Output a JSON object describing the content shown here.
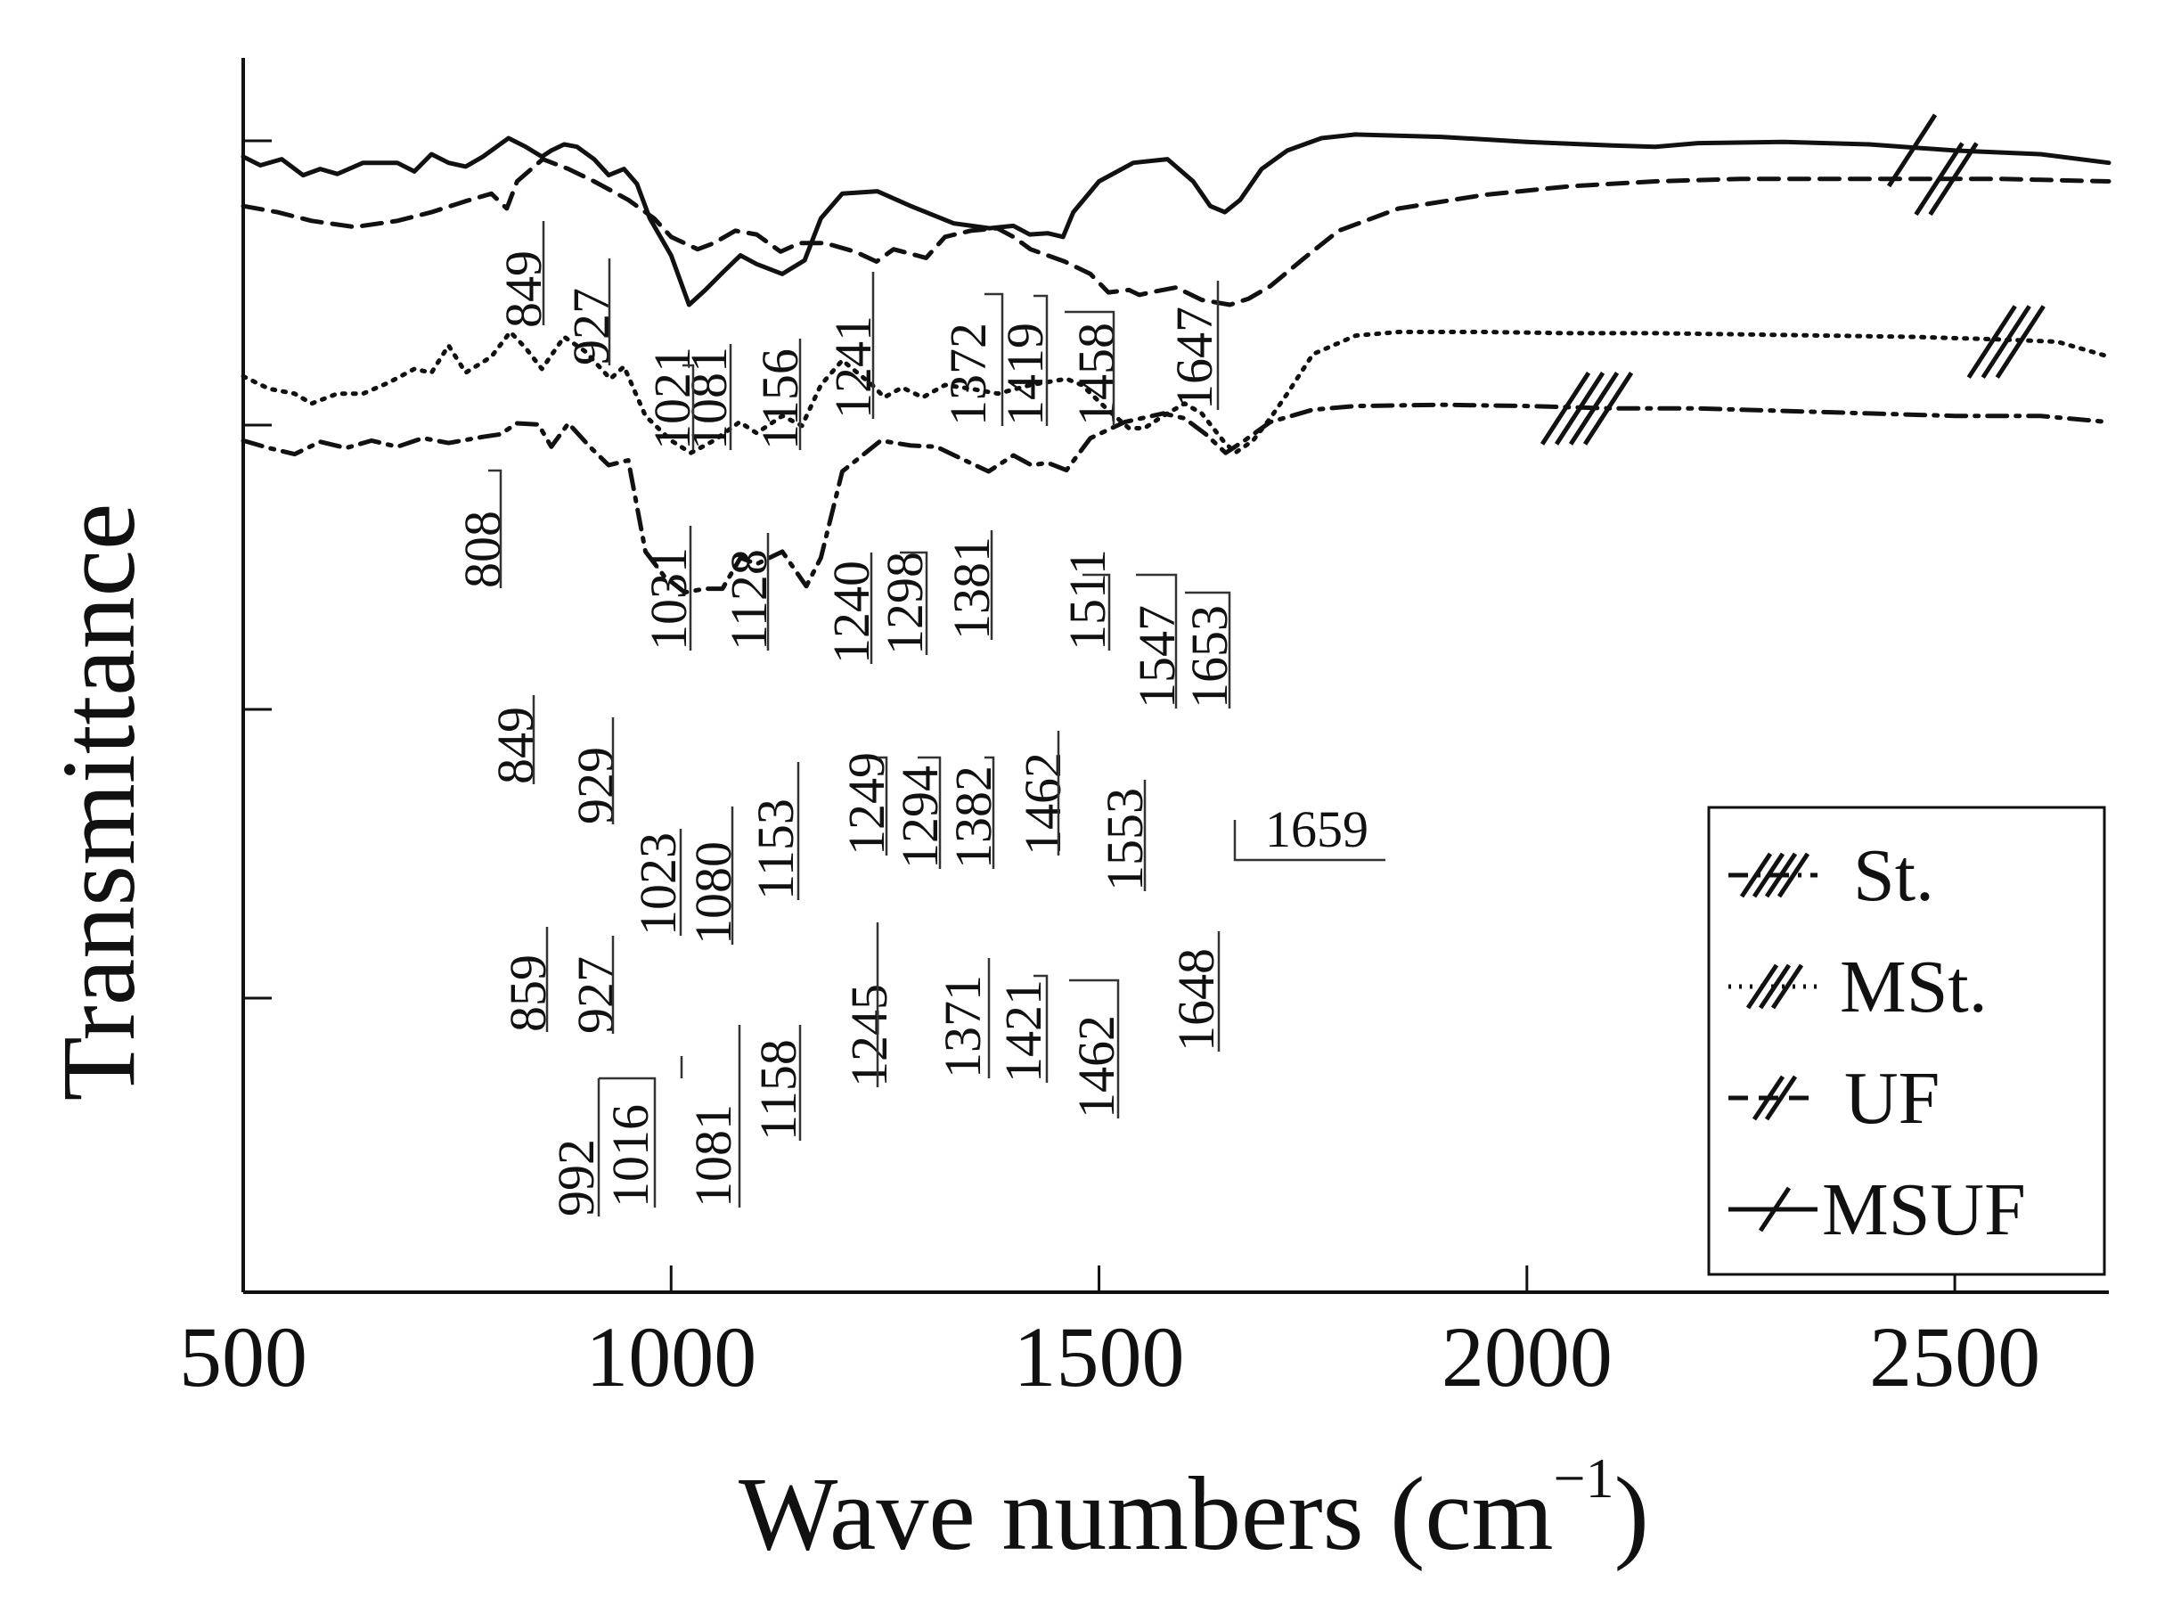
{
  "chart_data": {
    "type": "line",
    "title": "",
    "xlabel": "Wave numbers (cm",
    "xlabel_sup": "−1",
    "xlabel_close": ")",
    "ylabel": "Transmittance",
    "xlim": [
      500,
      2680
    ],
    "ylim": [
      0,
      1
    ],
    "grid": false,
    "x_ticks": [
      500,
      1000,
      1500,
      2000,
      2500
    ],
    "x_tick_labels": [
      "500",
      "1000",
      "1500",
      "2000",
      "2500"
    ],
    "legend_position": "bottom-right",
    "series": [
      {
        "name": "St.",
        "legend_marker": "////",
        "break_marks": 4,
        "break_x": 2070,
        "style": "dashdot",
        "points": [
          [
            500,
            0.69
          ],
          [
            530,
            0.684
          ],
          [
            560,
            0.679
          ],
          [
            590,
            0.689
          ],
          [
            620,
            0.684
          ],
          [
            650,
            0.69
          ],
          [
            680,
            0.685
          ],
          [
            710,
            0.692
          ],
          [
            740,
            0.688
          ],
          [
            780,
            0.693
          ],
          [
            800,
            0.695
          ],
          [
            820,
            0.704
          ],
          [
            845,
            0.703
          ],
          [
            860,
            0.685
          ],
          [
            880,
            0.704
          ],
          [
            905,
            0.685
          ],
          [
            927,
            0.67
          ],
          [
            950,
            0.674
          ],
          [
            970,
            0.6
          ],
          [
            992,
            0.58
          ],
          [
            1016,
            0.567
          ],
          [
            1040,
            0.57
          ],
          [
            1060,
            0.57
          ],
          [
            1081,
            0.595
          ],
          [
            1100,
            0.59
          ],
          [
            1130,
            0.6
          ],
          [
            1158,
            0.572
          ],
          [
            1175,
            0.595
          ],
          [
            1200,
            0.665
          ],
          [
            1245,
            0.69
          ],
          [
            1280,
            0.686
          ],
          [
            1310,
            0.685
          ],
          [
            1340,
            0.675
          ],
          [
            1371,
            0.665
          ],
          [
            1400,
            0.678
          ],
          [
            1421,
            0.67
          ],
          [
            1440,
            0.672
          ],
          [
            1462,
            0.666
          ],
          [
            1490,
            0.692
          ],
          [
            1530,
            0.705
          ],
          [
            1575,
            0.712
          ],
          [
            1600,
            0.708
          ],
          [
            1625,
            0.695
          ],
          [
            1648,
            0.68
          ],
          [
            1670,
            0.69
          ],
          [
            1700,
            0.705
          ],
          [
            1750,
            0.715
          ],
          [
            1800,
            0.718
          ],
          [
            1900,
            0.719
          ],
          [
            2000,
            0.718
          ],
          [
            2100,
            0.716
          ],
          [
            2200,
            0.716
          ],
          [
            2300,
            0.714
          ],
          [
            2400,
            0.712
          ],
          [
            2500,
            0.71
          ],
          [
            2600,
            0.71
          ],
          [
            2680,
            0.705
          ]
        ],
        "peaks": [
          "859",
          "927",
          "992",
          "1016",
          "1081",
          "1158",
          "1245",
          "1371",
          "1421",
          "1462",
          "1648"
        ]
      },
      {
        "name": "MSt.",
        "legend_marker": "///",
        "break_marks": 3,
        "break_x": 2560,
        "style": "dotted",
        "points": [
          [
            500,
            0.742
          ],
          [
            530,
            0.732
          ],
          [
            560,
            0.728
          ],
          [
            580,
            0.72
          ],
          [
            610,
            0.728
          ],
          [
            640,
            0.728
          ],
          [
            670,
            0.737
          ],
          [
            700,
            0.748
          ],
          [
            720,
            0.745
          ],
          [
            740,
            0.767
          ],
          [
            760,
            0.745
          ],
          [
            790,
            0.758
          ],
          [
            812,
            0.778
          ],
          [
            830,
            0.765
          ],
          [
            849,
            0.748
          ],
          [
            875,
            0.774
          ],
          [
            900,
            0.762
          ],
          [
            929,
            0.74
          ],
          [
            945,
            0.75
          ],
          [
            970,
            0.71
          ],
          [
            1000,
            0.69
          ],
          [
            1023,
            0.68
          ],
          [
            1050,
            0.69
          ],
          [
            1080,
            0.705
          ],
          [
            1100,
            0.696
          ],
          [
            1130,
            0.71
          ],
          [
            1153,
            0.702
          ],
          [
            1175,
            0.735
          ],
          [
            1200,
            0.755
          ],
          [
            1235,
            0.735
          ],
          [
            1249,
            0.725
          ],
          [
            1270,
            0.733
          ],
          [
            1294,
            0.725
          ],
          [
            1320,
            0.735
          ],
          [
            1350,
            0.732
          ],
          [
            1382,
            0.728
          ],
          [
            1420,
            0.735
          ],
          [
            1462,
            0.74
          ],
          [
            1480,
            0.735
          ],
          [
            1510,
            0.715
          ],
          [
            1535,
            0.7
          ],
          [
            1553,
            0.7
          ],
          [
            1575,
            0.71
          ],
          [
            1600,
            0.72
          ],
          [
            1620,
            0.712
          ],
          [
            1645,
            0.69
          ],
          [
            1659,
            0.68
          ],
          [
            1680,
            0.69
          ],
          [
            1700,
            0.708
          ],
          [
            1720,
            0.728
          ],
          [
            1750,
            0.76
          ],
          [
            1800,
            0.775
          ],
          [
            1850,
            0.778
          ],
          [
            1950,
            0.778
          ],
          [
            2050,
            0.777
          ],
          [
            2150,
            0.777
          ],
          [
            2250,
            0.776
          ],
          [
            2350,
            0.775
          ],
          [
            2450,
            0.774
          ],
          [
            2550,
            0.772
          ],
          [
            2620,
            0.77
          ],
          [
            2680,
            0.758
          ]
        ],
        "peaks": [
          "849",
          "929",
          "1023",
          "1080",
          "1153",
          "1249",
          "1294",
          "1382",
          "1462",
          "1553",
          "1659"
        ]
      },
      {
        "name": "UF",
        "legend_marker": "//",
        "break_marks": 2,
        "break_x": 2490,
        "style": "dashed",
        "points": [
          [
            500,
            0.88
          ],
          [
            540,
            0.875
          ],
          [
            580,
            0.868
          ],
          [
            630,
            0.863
          ],
          [
            680,
            0.868
          ],
          [
            720,
            0.875
          ],
          [
            760,
            0.884
          ],
          [
            790,
            0.89
          ],
          [
            808,
            0.878
          ],
          [
            820,
            0.9
          ],
          [
            850,
            0.918
          ],
          [
            880,
            0.91
          ],
          [
            910,
            0.9
          ],
          [
            950,
            0.885
          ],
          [
            980,
            0.87
          ],
          [
            1000,
            0.855
          ],
          [
            1031,
            0.845
          ],
          [
            1050,
            0.85
          ],
          [
            1075,
            0.86
          ],
          [
            1100,
            0.857
          ],
          [
            1128,
            0.843
          ],
          [
            1150,
            0.85
          ],
          [
            1180,
            0.85
          ],
          [
            1215,
            0.843
          ],
          [
            1240,
            0.835
          ],
          [
            1260,
            0.845
          ],
          [
            1298,
            0.838
          ],
          [
            1320,
            0.855
          ],
          [
            1350,
            0.86
          ],
          [
            1381,
            0.862
          ],
          [
            1400,
            0.855
          ],
          [
            1420,
            0.845
          ],
          [
            1460,
            0.835
          ],
          [
            1490,
            0.825
          ],
          [
            1511,
            0.81
          ],
          [
            1535,
            0.812
          ],
          [
            1547,
            0.808
          ],
          [
            1560,
            0.81
          ],
          [
            1590,
            0.814
          ],
          [
            1620,
            0.804
          ],
          [
            1653,
            0.8
          ],
          [
            1675,
            0.805
          ],
          [
            1700,
            0.815
          ],
          [
            1740,
            0.838
          ],
          [
            1780,
            0.86
          ],
          [
            1850,
            0.878
          ],
          [
            1950,
            0.889
          ],
          [
            2050,
            0.896
          ],
          [
            2150,
            0.9
          ],
          [
            2250,
            0.902
          ],
          [
            2350,
            0.902
          ],
          [
            2450,
            0.902
          ],
          [
            2550,
            0.902
          ],
          [
            2680,
            0.9
          ]
        ],
        "peaks": [
          "808",
          "1031",
          "1128",
          "1240",
          "1298",
          "1381",
          "1511",
          "1547",
          "1653"
        ]
      },
      {
        "name": "MSUF",
        "legend_marker": "/",
        "break_marks": 1,
        "break_x": 2450,
        "style": "solid",
        "points": [
          [
            500,
            0.92
          ],
          [
            520,
            0.913
          ],
          [
            545,
            0.918
          ],
          [
            570,
            0.905
          ],
          [
            590,
            0.91
          ],
          [
            610,
            0.906
          ],
          [
            640,
            0.915
          ],
          [
            680,
            0.915
          ],
          [
            700,
            0.908
          ],
          [
            720,
            0.922
          ],
          [
            740,
            0.915
          ],
          [
            760,
            0.912
          ],
          [
            780,
            0.92
          ],
          [
            810,
            0.935
          ],
          [
            830,
            0.928
          ],
          [
            849,
            0.92
          ],
          [
            860,
            0.925
          ],
          [
            875,
            0.93
          ],
          [
            890,
            0.928
          ],
          [
            910,
            0.918
          ],
          [
            927,
            0.905
          ],
          [
            945,
            0.91
          ],
          [
            960,
            0.898
          ],
          [
            975,
            0.87
          ],
          [
            1000,
            0.84
          ],
          [
            1021,
            0.8
          ],
          [
            1040,
            0.812
          ],
          [
            1060,
            0.826
          ],
          [
            1081,
            0.84
          ],
          [
            1100,
            0.833
          ],
          [
            1130,
            0.825
          ],
          [
            1156,
            0.836
          ],
          [
            1175,
            0.87
          ],
          [
            1200,
            0.89
          ],
          [
            1241,
            0.892
          ],
          [
            1280,
            0.88
          ],
          [
            1330,
            0.866
          ],
          [
            1372,
            0.862
          ],
          [
            1400,
            0.864
          ],
          [
            1419,
            0.857
          ],
          [
            1440,
            0.858
          ],
          [
            1458,
            0.855
          ],
          [
            1470,
            0.875
          ],
          [
            1500,
            0.9
          ],
          [
            1540,
            0.915
          ],
          [
            1580,
            0.918
          ],
          [
            1610,
            0.9
          ],
          [
            1630,
            0.88
          ],
          [
            1647,
            0.875
          ],
          [
            1665,
            0.885
          ],
          [
            1690,
            0.91
          ],
          [
            1720,
            0.925
          ],
          [
            1760,
            0.935
          ],
          [
            1800,
            0.938
          ],
          [
            1900,
            0.936
          ],
          [
            2000,
            0.932
          ],
          [
            2100,
            0.929
          ],
          [
            2150,
            0.928
          ],
          [
            2200,
            0.931
          ],
          [
            2300,
            0.932
          ],
          [
            2400,
            0.93
          ],
          [
            2500,
            0.925
          ],
          [
            2600,
            0.922
          ],
          [
            2680,
            0.915
          ]
        ],
        "peaks": [
          "849",
          "927",
          "1021",
          "1081",
          "1156",
          "1241",
          "1372",
          "1419",
          "1458",
          "1647"
        ]
      }
    ]
  }
}
